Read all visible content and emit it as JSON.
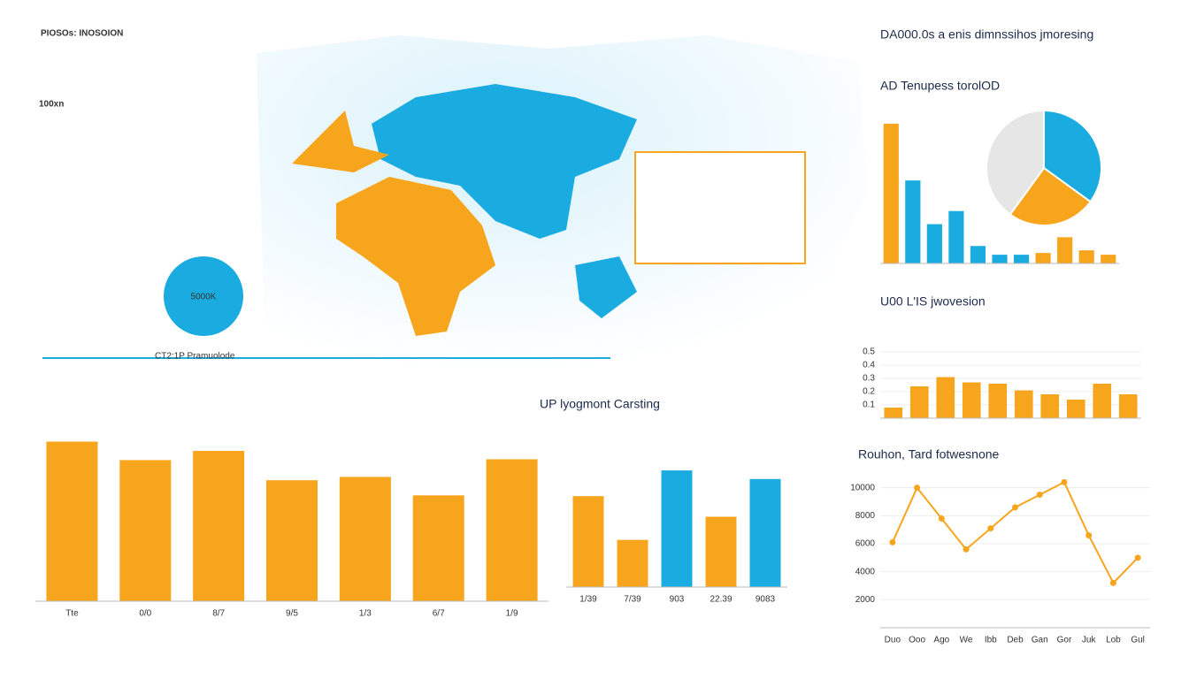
{
  "header": {
    "kicker": "PIOSOs: INOSOION",
    "big_number": "100xn",
    "circle_label": "5000K",
    "caption": "CT2:1P Pramuolode",
    "top_right_title": "DA000.0s a enis dimnssihos jmoresing"
  },
  "chart_data": [
    {
      "type": "bar",
      "categories": [
        "Tte",
        "0/0",
        "8/7",
        "9/5",
        "1/3",
        "6/7",
        "1/9"
      ],
      "values": [
        190,
        168,
        179,
        144,
        148,
        126,
        169
      ],
      "color": "#f7a51c",
      "ylim": [
        0,
        200
      ]
    },
    {
      "type": "bar",
      "title": "UP lyogmont Carsting",
      "categories": [
        "1/39",
        "7/39",
        "903",
        "22.39",
        "9083"
      ],
      "values": [
        106,
        55,
        136,
        82,
        126
      ],
      "colors": [
        "#f7a51c",
        "#f7a51c",
        "#1aace0",
        "#f7a51c",
        "#1aace0"
      ],
      "ylim": [
        0,
        200
      ]
    },
    {
      "type": "bar",
      "title": "AD Tenupess torolOD",
      "values": [
        160,
        95,
        45,
        60,
        20,
        10,
        10,
        12,
        30,
        15,
        10
      ],
      "colors": [
        "#f7a51c",
        "#1aace0",
        "#1aace0",
        "#1aace0",
        "#1aace0",
        "#1aace0",
        "#1aace0",
        "#f7a51c",
        "#f7a51c",
        "#f7a51c",
        "#f7a51c"
      ],
      "ylim": [
        0,
        170
      ]
    },
    {
      "type": "pie",
      "values": [
        35,
        25,
        40
      ],
      "colors": [
        "#1aace0",
        "#f7a51c",
        "#e6e6e6"
      ]
    },
    {
      "type": "bar",
      "title": "U00 L'IS jwovesion",
      "values": [
        0.08,
        0.24,
        0.31,
        0.27,
        0.26,
        0.21,
        0.18,
        0.14,
        0.26,
        0.18
      ],
      "color": "#f7a51c",
      "ylim": [
        0,
        0.5
      ],
      "yticks": [
        0.1,
        0.2,
        0.3,
        0.4,
        0.5
      ]
    },
    {
      "type": "line",
      "title": "Rouhon, Tard fotwesnone",
      "categories": [
        "Duo",
        "Ooo",
        "Ago",
        "We",
        "Ibb",
        "Deb",
        "Gan",
        "Gor",
        "Juk",
        "Lob",
        "Gul"
      ],
      "values": [
        6100,
        10000,
        7800,
        5600,
        7100,
        8600,
        9500,
        10400,
        6600,
        3200,
        5000
      ],
      "color": "#f7a51c",
      "ylim": [
        0,
        12000
      ],
      "yticks": [
        2000,
        4000,
        6000,
        8000,
        10000
      ]
    }
  ]
}
